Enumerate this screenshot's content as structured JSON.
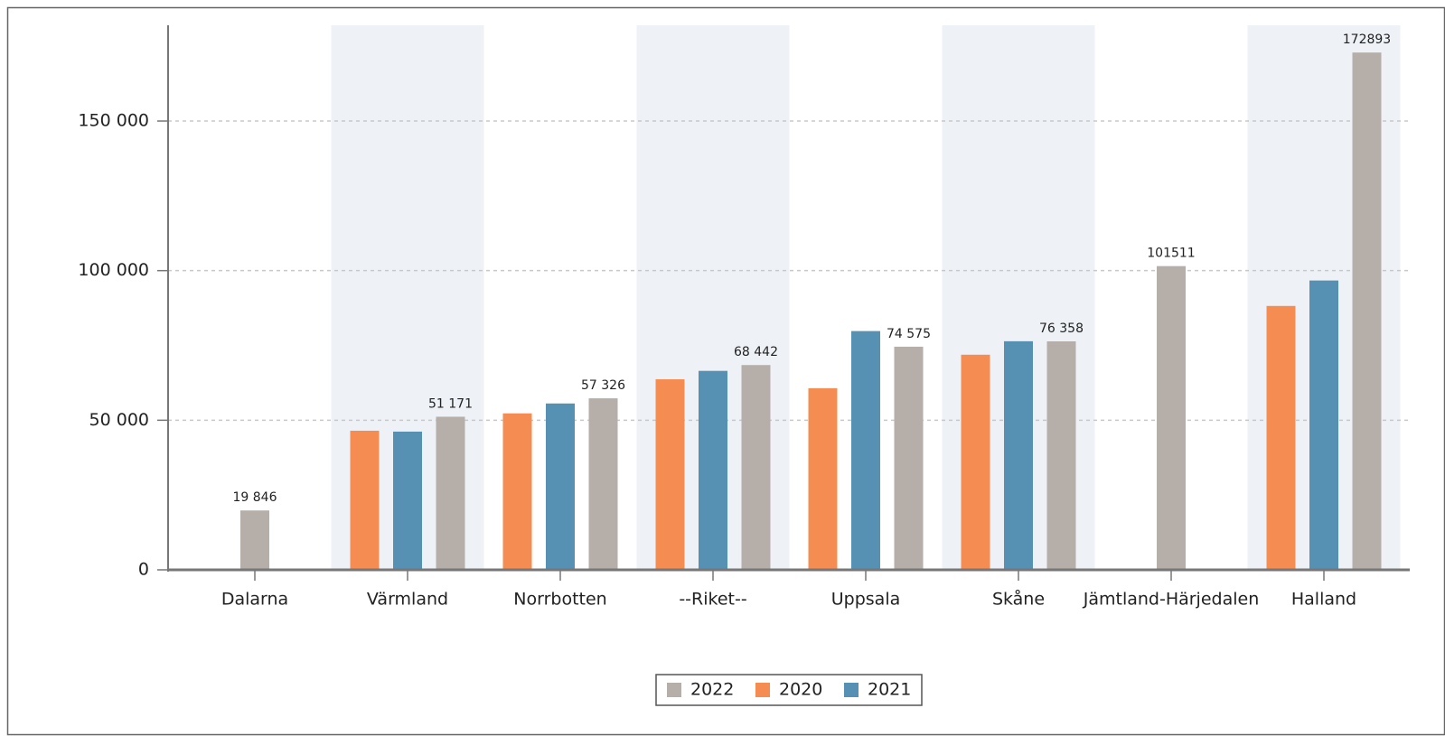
{
  "chart_data": {
    "type": "bar",
    "categories": [
      "Dalarna",
      "Värmland",
      "Norrbotten",
      "--Riket--",
      "Uppsala",
      "Skåne",
      "Jämtland-Härjedalen",
      "Halland"
    ],
    "series": [
      {
        "name": "2022",
        "color": "#b5aea9",
        "values": [
          19846,
          51171,
          57326,
          68442,
          74575,
          76358,
          101511,
          172893
        ],
        "value_labels": [
          "19 846",
          "51 171",
          "57 326",
          "68 442",
          "74 575",
          "76 358",
          "101511",
          "172893"
        ]
      },
      {
        "name": "2020",
        "color": "#f58d52",
        "values": [
          null,
          46500,
          52300,
          63700,
          60700,
          71900,
          null,
          88200
        ]
      },
      {
        "name": "2021",
        "color": "#5691b3",
        "values": [
          null,
          46200,
          55600,
          66500,
          79800,
          76400,
          null,
          96700
        ]
      }
    ],
    "draw_order": [
      1,
      2,
      0
    ],
    "ylim": [
      0,
      182000
    ],
    "yticks": [
      0,
      {
        "value": 50000,
        "label": "50 000"
      },
      {
        "value": 100000,
        "label": "100 000"
      },
      {
        "value": 150000,
        "label": "150 000"
      }
    ],
    "grid": true,
    "legend": "bottom"
  }
}
